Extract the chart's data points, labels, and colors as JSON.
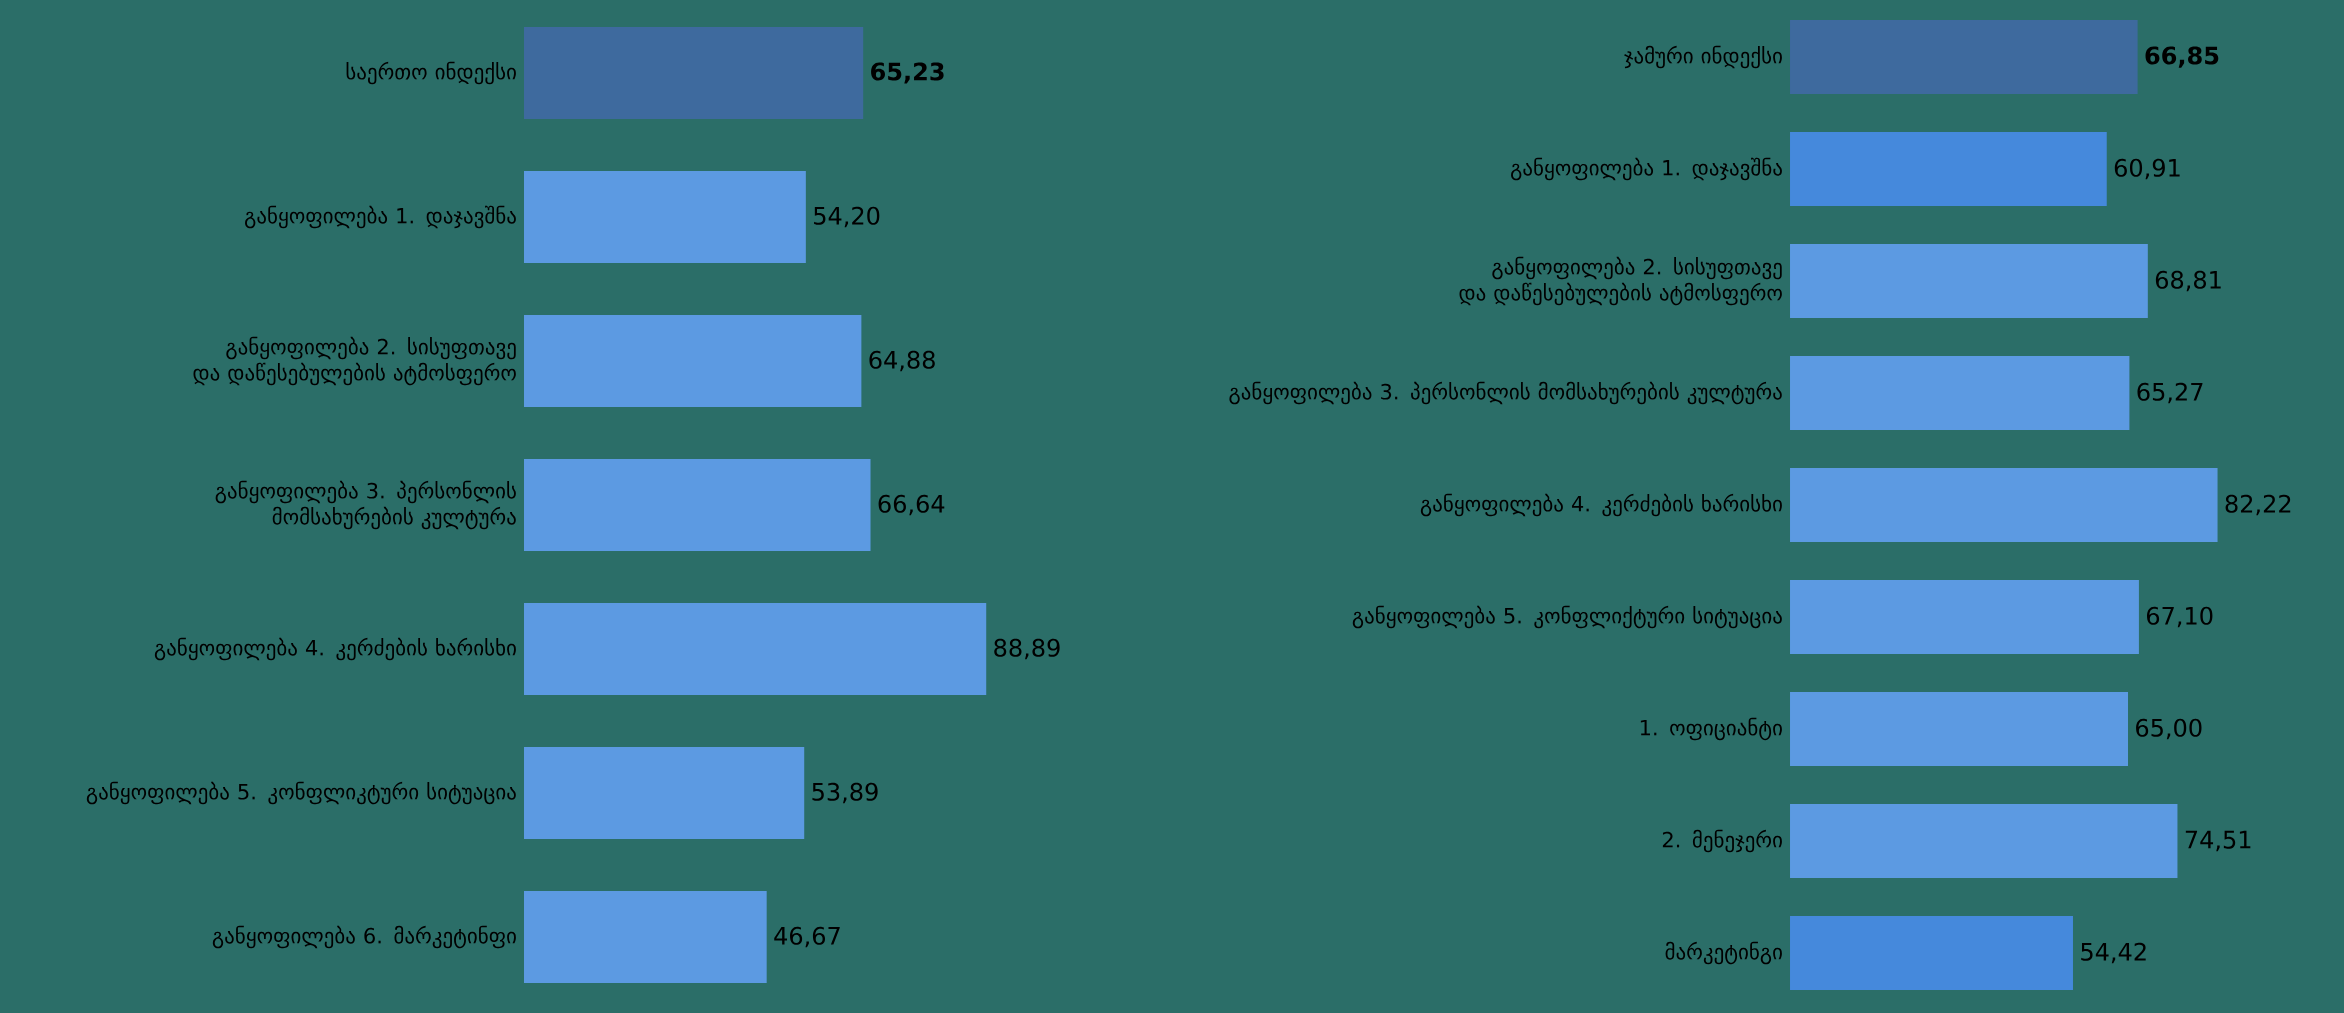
{
  "chart_data": [
    {
      "type": "bar",
      "orientation": "horizontal",
      "tick_labels": "y",
      "categories": [
        "საერთო ინდექსი",
        "განყოფილება 1. დაჯავშნა",
        "განყოფილება 2. სისუფთავე და დაწესებულების ატმოსფერო",
        "განყოფილება 3. პერსონლის მომსახურების კულტურა",
        "განყოფილება 4. კერძების ხარისხი",
        "განყოფილება 5. კონფლიკტური სიტუაცია",
        "განყოფილება 6. მარკეტინფი"
      ],
      "values": [
        65.23,
        54.2,
        64.88,
        66.64,
        88.89,
        53.89,
        46.67
      ],
      "value_labels": [
        "**65,23**",
        "54,20",
        "64,88",
        "66,64",
        "88,89",
        "53,89",
        "46,67"
      ],
      "colors": [
        "#3e6a9e",
        "#5c9ae2",
        "#5c9ae2",
        "#5c9ae2",
        "#5c9ae2",
        "#5c9ae2",
        "#5c9ae2"
      ]
    },
    {
      "type": "bar",
      "orientation": "horizontal",
      "tick_labels": "y",
      "categories": [
        "ჯამური ინდექსი",
        "განყოფილება 1. დაჯავშნა",
        "განყოფილება 2. სისუფთავე და დაწესებულების ატმოსფერო",
        "განყოფილება 3. პერსონლის მომსახურების კულტურა",
        "განყოფილება 4. კერძების ხარისხი",
        "განყოფილება 5. კონფლიქტური სიტუაცია",
        "1. ოფიციანტი",
        "2. მენეჯერი",
        "მარკეტინგი"
      ],
      "values": [
        66.85,
        60.91,
        68.81,
        65.27,
        82.22,
        67.1,
        65.0,
        74.51,
        54.42
      ],
      "value_labels": [
        "**66,85**",
        "60,91",
        "68,81",
        "65,27",
        "82,22",
        "67,10",
        "65,00",
        "74,51",
        "54,42"
      ],
      "colors": [
        "#3e6a9e",
        "#4589dc",
        "#5c9ae2",
        "#5c9ae2",
        "#5c9ae2",
        "#5c9ae2",
        "#5c9ae2",
        "#5c9ae2",
        "#4589dc"
      ]
    }
  ]
}
